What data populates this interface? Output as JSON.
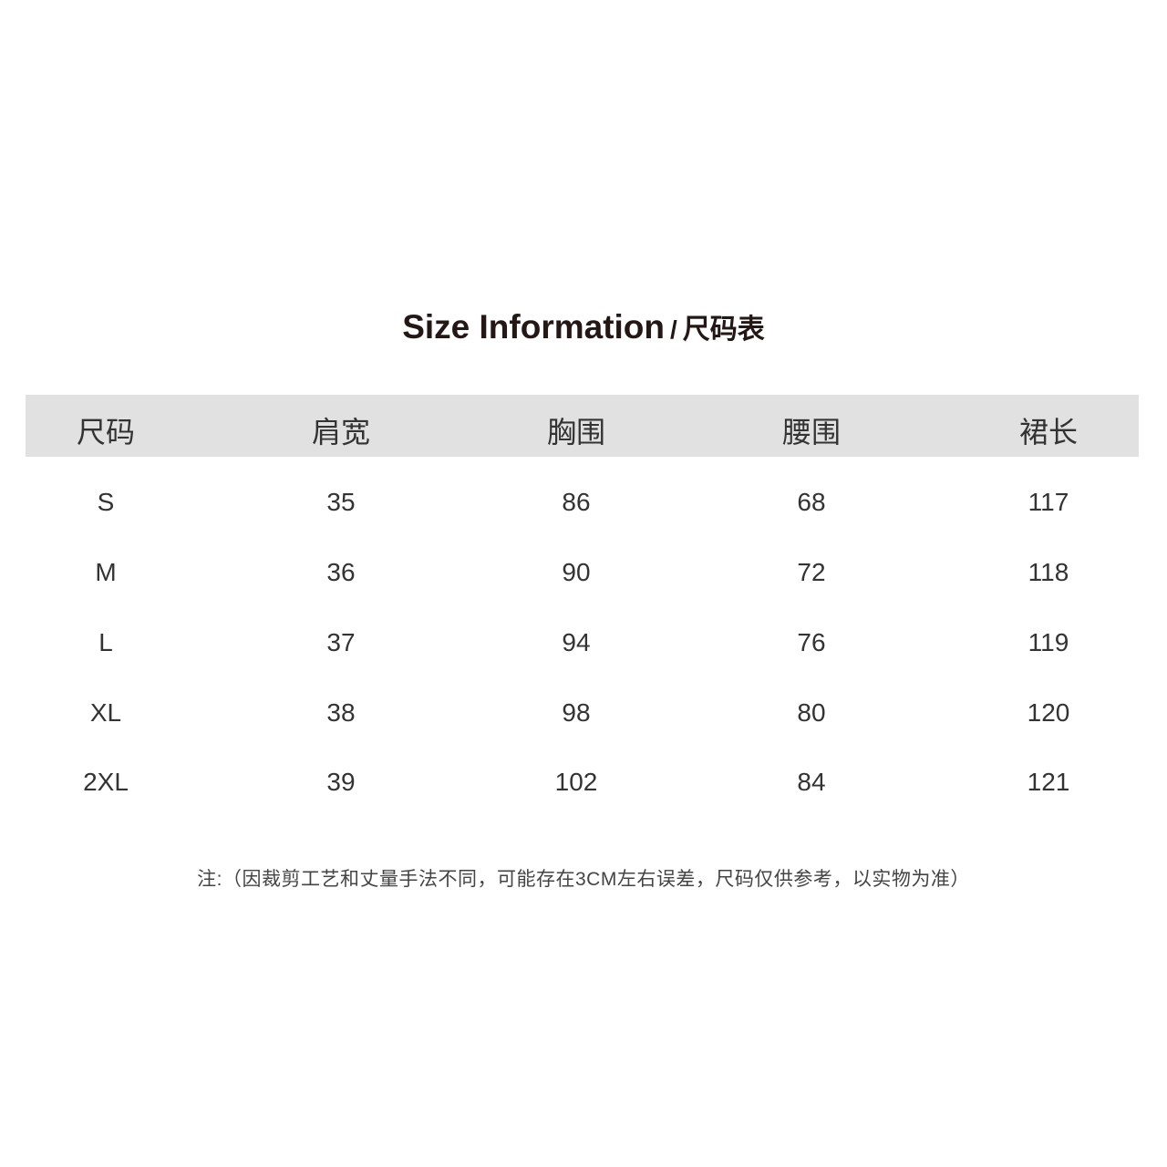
{
  "title": {
    "en": "Size Information",
    "separator": "/",
    "zh": "尺码表"
  },
  "header_bg": "#e1e1e1",
  "table": {
    "columns": [
      "尺码",
      "肩宽",
      "胸围",
      "腰围",
      "裙长"
    ],
    "rows": [
      [
        "S",
        "35",
        "86",
        "68",
        "117"
      ],
      [
        "M",
        "36",
        "90",
        "72",
        "118"
      ],
      [
        "L",
        "37",
        "94",
        "76",
        "119"
      ],
      [
        "XL",
        "38",
        "98",
        "80",
        "120"
      ],
      [
        "2XL",
        "39",
        "102",
        "84",
        "121"
      ]
    ]
  },
  "note": "注:（因裁剪工艺和丈量手法不同，可能存在3CM左右误差，尺码仅供参考，以实物为准）"
}
